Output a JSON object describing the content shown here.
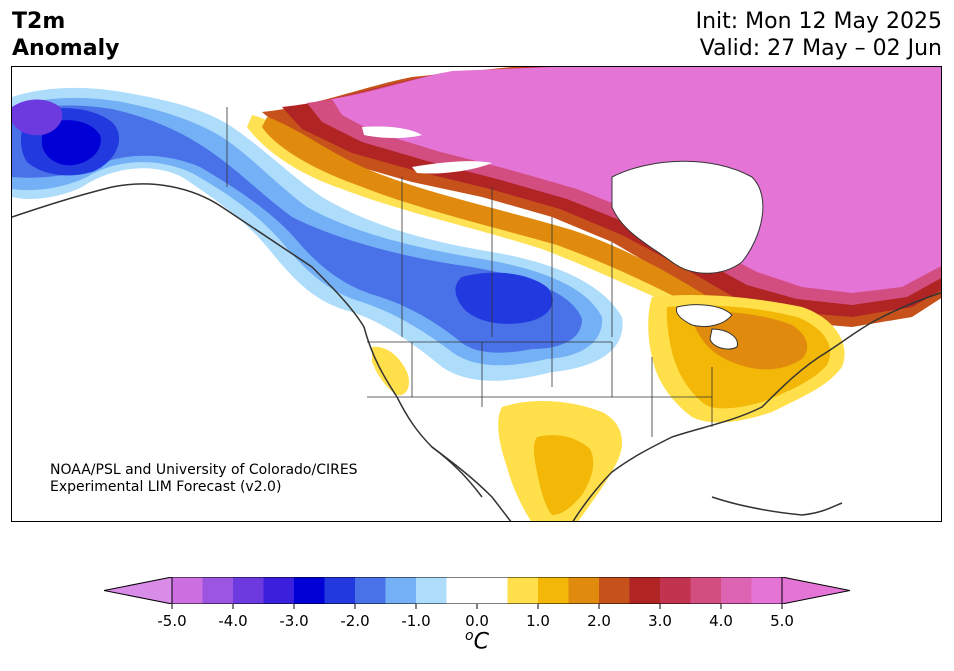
{
  "title": {
    "line1": "T2m",
    "line2": "Anomaly"
  },
  "header": {
    "init": "Init: Mon 12 May 2025",
    "valid": "Valid: 27 May – 02 Jun"
  },
  "credit": {
    "line1": "NOAA/PSL and University of Colorado/CIRES",
    "line2": "Experimental LIM Forecast (v2.0)"
  },
  "colorbar": {
    "unit_label": "°C",
    "unit_prefix": "o",
    "unit_letter": "C",
    "ticks": [
      "-5.0",
      "-4.0",
      "-3.0",
      "-2.0",
      "-1.0",
      "0.0",
      "1.0",
      "2.0",
      "3.0",
      "4.0",
      "5.0"
    ],
    "colors": [
      "#cc6fe0",
      "#9c55e0",
      "#6d3ae0",
      "#3a1fdc",
      "#0000d6",
      "#2239e0",
      "#4a72e8",
      "#74b0f5",
      "#aedcfb",
      "#ffffff",
      "#ffffff",
      "#ffe04a",
      "#f2b707",
      "#e08b0e",
      "#c6511a",
      "#b02424",
      "#c23350",
      "#d24d80",
      "#dd63b3",
      "#e474d6"
    ],
    "under_color": "#d98ce8",
    "over_color": "#e474d6"
  },
  "colors": {
    "land": "#ffffff",
    "border": "#333333",
    "coast": "#333333"
  }
}
